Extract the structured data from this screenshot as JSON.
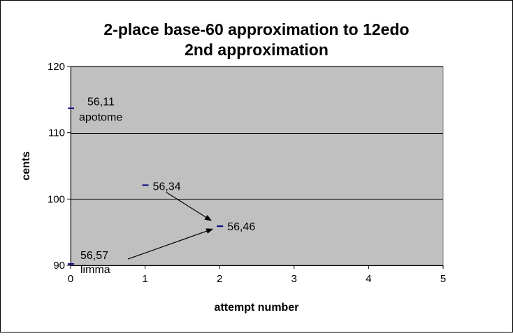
{
  "chart_data": {
    "type": "scatter",
    "title_lines": [
      "2-place base-60 approximation to 12edo",
      "2nd approximation"
    ],
    "xlabel": "attempt number",
    "ylabel": "cents",
    "xlim": [
      0,
      5
    ],
    "ylim": [
      90,
      120
    ],
    "x_ticks": [
      0,
      1,
      2,
      3,
      4,
      5
    ],
    "y_ticks": [
      90,
      100,
      110,
      120
    ],
    "grid": "horizontal",
    "legend": "none",
    "colors": {
      "plot_bg": "#c0c0c0",
      "marker": "#000080",
      "grid": "#000000",
      "border": "#000000"
    },
    "points": [
      {
        "x": 0,
        "y": 113.7,
        "label": "56,11",
        "sublabel": "apotome"
      },
      {
        "x": 0,
        "y": 90.2,
        "label": "56,57",
        "sublabel": "limma"
      },
      {
        "x": 1,
        "y": 102.1,
        "label": "56,34",
        "sublabel": ""
      },
      {
        "x": 2,
        "y": 95.9,
        "label": "56,46",
        "sublabel": ""
      }
    ],
    "arrows": [
      {
        "from_point": 2,
        "to_point": 3
      },
      {
        "from_point": 1,
        "to_point": 3
      }
    ]
  }
}
